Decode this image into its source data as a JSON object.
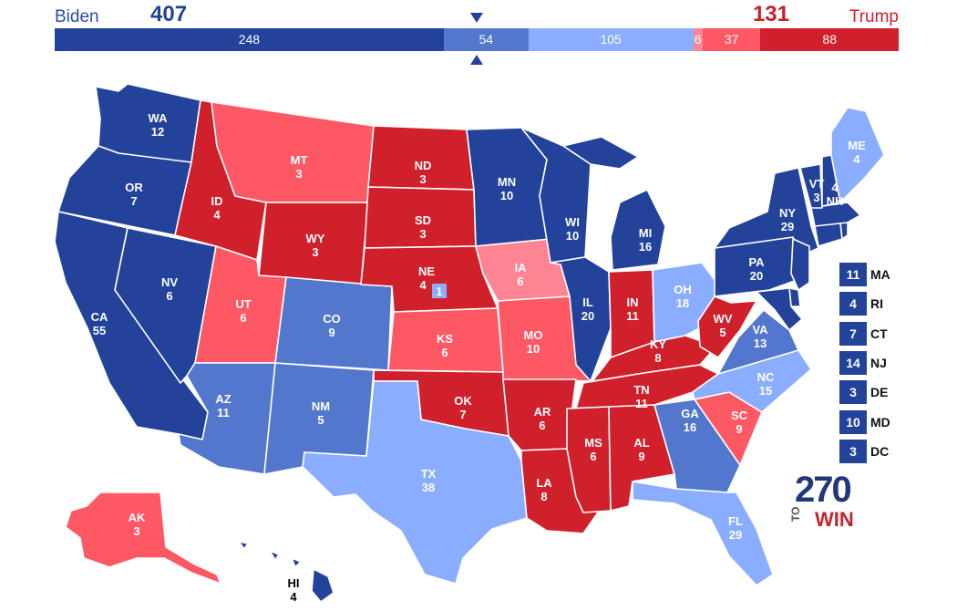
{
  "header": {
    "biden_name": "Biden",
    "biden_total": "407",
    "trump_name": "Trump",
    "trump_total": "131"
  },
  "colors": {
    "safe_d": "#23429a",
    "likely_d": "#5277cc",
    "lean_d": "#8aadff",
    "tilt_r": "#ff8491",
    "lean_r": "#ff5865",
    "safe_r": "#d0202c"
  },
  "bar_segments": [
    {
      "value": 248,
      "label": "248",
      "category": "safe_d"
    },
    {
      "value": 54,
      "label": "54",
      "category": "likely_d"
    },
    {
      "value": 105,
      "label": "105",
      "category": "lean_d"
    },
    {
      "value": 6,
      "label": "6",
      "category": "tilt_r"
    },
    {
      "value": 37,
      "label": "37",
      "category": "lean_r"
    },
    {
      "value": 88,
      "label": "88",
      "category": "safe_r"
    }
  ],
  "states": [
    {
      "abbr": "WA",
      "ev": "12",
      "category": "safe_d"
    },
    {
      "abbr": "OR",
      "ev": "7",
      "category": "safe_d"
    },
    {
      "abbr": "CA",
      "ev": "55",
      "category": "safe_d"
    },
    {
      "abbr": "NV",
      "ev": "6",
      "category": "safe_d"
    },
    {
      "abbr": "ID",
      "ev": "4",
      "category": "safe_r"
    },
    {
      "abbr": "MT",
      "ev": "3",
      "category": "lean_r"
    },
    {
      "abbr": "WY",
      "ev": "3",
      "category": "safe_r"
    },
    {
      "abbr": "UT",
      "ev": "6",
      "category": "lean_r"
    },
    {
      "abbr": "AZ",
      "ev": "11",
      "category": "likely_d"
    },
    {
      "abbr": "CO",
      "ev": "9",
      "category": "likely_d"
    },
    {
      "abbr": "NM",
      "ev": "5",
      "category": "likely_d"
    },
    {
      "abbr": "ND",
      "ev": "3",
      "category": "safe_r"
    },
    {
      "abbr": "SD",
      "ev": "3",
      "category": "safe_r"
    },
    {
      "abbr": "NE",
      "ev": "4",
      "category": "safe_r"
    },
    {
      "abbr": "KS",
      "ev": "6",
      "category": "lean_r"
    },
    {
      "abbr": "OK",
      "ev": "7",
      "category": "safe_r"
    },
    {
      "abbr": "TX",
      "ev": "38",
      "category": "lean_d"
    },
    {
      "abbr": "MN",
      "ev": "10",
      "category": "safe_d"
    },
    {
      "abbr": "IA",
      "ev": "6",
      "category": "tilt_r"
    },
    {
      "abbr": "MO",
      "ev": "10",
      "category": "lean_r"
    },
    {
      "abbr": "AR",
      "ev": "6",
      "category": "safe_r"
    },
    {
      "abbr": "LA",
      "ev": "8",
      "category": "safe_r"
    },
    {
      "abbr": "WI",
      "ev": "10",
      "category": "safe_d"
    },
    {
      "abbr": "IL",
      "ev": "20",
      "category": "safe_d"
    },
    {
      "abbr": "MI",
      "ev": "16",
      "category": "safe_d"
    },
    {
      "abbr": "IN",
      "ev": "11",
      "category": "safe_r"
    },
    {
      "abbr": "OH",
      "ev": "18",
      "category": "lean_d"
    },
    {
      "abbr": "KY",
      "ev": "8",
      "category": "safe_r"
    },
    {
      "abbr": "TN",
      "ev": "11",
      "category": "safe_r"
    },
    {
      "abbr": "MS",
      "ev": "6",
      "category": "safe_r"
    },
    {
      "abbr": "AL",
      "ev": "9",
      "category": "safe_r"
    },
    {
      "abbr": "GA",
      "ev": "16",
      "category": "likely_d"
    },
    {
      "abbr": "FL",
      "ev": "29",
      "category": "lean_d"
    },
    {
      "abbr": "SC",
      "ev": "9",
      "category": "lean_r"
    },
    {
      "abbr": "NC",
      "ev": "15",
      "category": "lean_d"
    },
    {
      "abbr": "VA",
      "ev": "13",
      "category": "likely_d"
    },
    {
      "abbr": "WV",
      "ev": "5",
      "category": "safe_r"
    },
    {
      "abbr": "PA",
      "ev": "20",
      "category": "safe_d"
    },
    {
      "abbr": "NY",
      "ev": "29",
      "category": "safe_d"
    },
    {
      "abbr": "VT",
      "ev": "3",
      "category": "safe_d"
    },
    {
      "abbr": "NH",
      "ev": "4",
      "category": "safe_d"
    },
    {
      "abbr": "ME",
      "ev": "4",
      "category": "lean_d"
    },
    {
      "abbr": "AK",
      "ev": "3",
      "category": "lean_r"
    },
    {
      "abbr": "HI",
      "ev": "4",
      "category": "safe_d"
    }
  ],
  "ne_district": {
    "ev": "1",
    "category": "lean_d"
  },
  "side_states": [
    {
      "abbr": "MA",
      "ev": "11"
    },
    {
      "abbr": "RI",
      "ev": "4"
    },
    {
      "abbr": "CT",
      "ev": "7"
    },
    {
      "abbr": "NJ",
      "ev": "14"
    },
    {
      "abbr": "DE",
      "ev": "3"
    },
    {
      "abbr": "MD",
      "ev": "10"
    },
    {
      "abbr": "DC",
      "ev": "3"
    }
  ],
  "logo": {
    "number": "270",
    "to": "TO",
    "win": "WIN"
  }
}
